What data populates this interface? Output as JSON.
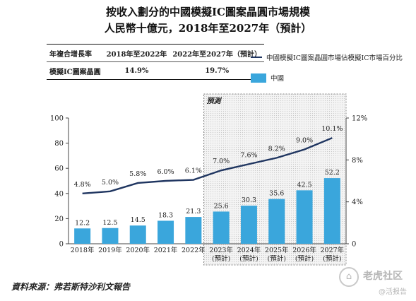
{
  "title_line1": "按收入劃分的中國模擬IC圖案晶圓市場規模",
  "title_line2": "人民幣十億元，2018年至2027年（預計）",
  "cagr_table": {
    "header": [
      "年複合增長率",
      "2018年至2022年",
      "2022年至2027年（預計）"
    ],
    "row_label": "模擬IC圖案晶圓",
    "row_values": [
      "14.9%",
      "19.7%"
    ]
  },
  "forecast_label": "預測",
  "source": "資料來源：弗若斯特沙利文報告",
  "watermark": {
    "line1": "老虎社区",
    "line2": "@活报告"
  },
  "chart_data": {
    "type": "bar",
    "categories": [
      "2018年",
      "2019年",
      "2020年",
      "2021年",
      "2022年",
      "2023年",
      "2024年",
      "2025年",
      "2026年",
      "2027年"
    ],
    "category_sub": [
      "",
      "",
      "",
      "",
      "",
      "(預計)",
      "(預計)",
      "(預計)",
      "(預計)",
      "(預計)"
    ],
    "series": [
      {
        "name": "中國",
        "type": "bar",
        "axis": "left",
        "color": "#3aa6dc",
        "values": [
          12.2,
          12.5,
          14.5,
          18.3,
          21.3,
          25.6,
          30.3,
          35.6,
          42.5,
          52.2
        ],
        "labels": [
          "12.2",
          "12.5",
          "14.5",
          "18.3",
          "21.3",
          "25.6",
          "30.3",
          "35.6",
          "42.5",
          "52.2"
        ]
      },
      {
        "name": "中國模擬IC圖案晶圓市場佔模擬IC市場百分比",
        "type": "line",
        "axis": "right",
        "color": "#1f3560",
        "values": [
          4.8,
          5.0,
          5.8,
          6.0,
          6.1,
          7.0,
          7.6,
          8.2,
          9.0,
          10.1
        ],
        "labels": [
          "4.8%",
          "5.0%",
          "5.8%",
          "6.0%",
          "6.1%",
          "7.0%",
          "7.6%",
          "8.2%",
          "9.0%",
          "10.1%"
        ]
      }
    ],
    "y_left": {
      "min": 0,
      "max": 100,
      "ticks": [
        "0",
        "20",
        "40",
        "60",
        "80",
        "100"
      ]
    },
    "y_right": {
      "min": 0,
      "max": 12,
      "ticks": [
        "0",
        "4%",
        "8%",
        "12%"
      ]
    },
    "forecast_start_index": 5,
    "grid": false,
    "legend_position": "top-right"
  }
}
